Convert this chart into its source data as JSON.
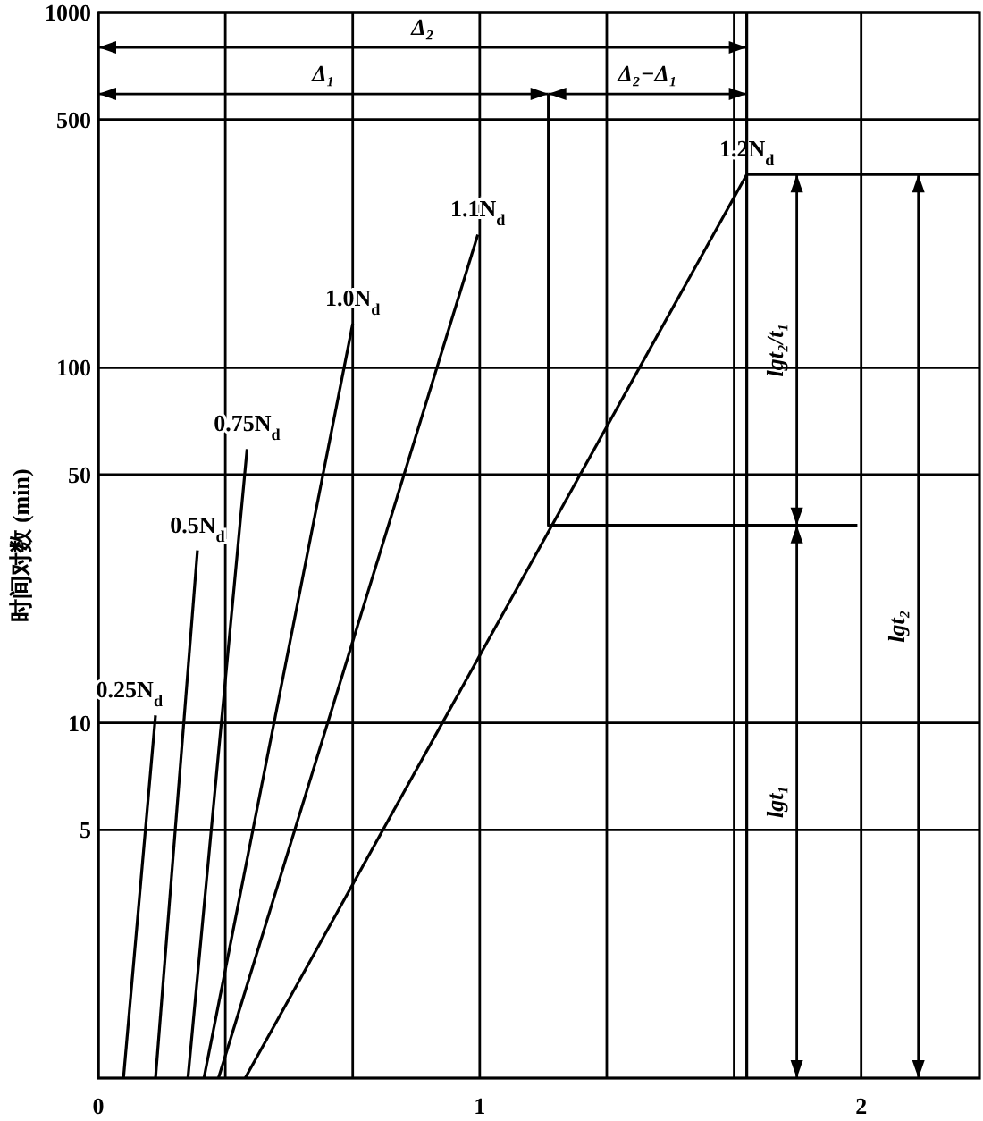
{
  "chart_data": {
    "type": "line",
    "ylabel": "时间对数 (min)",
    "log": "y",
    "grid": true,
    "marker": "none",
    "xlim": [
      0,
      2.31
    ],
    "ylim": [
      1,
      1000
    ],
    "xticks": [
      0,
      {
        "value": 0.333,
        "label": null
      },
      {
        "value": 0.667,
        "label": null
      },
      1,
      {
        "value": 1.333,
        "label": null
      },
      {
        "value": 1.667,
        "label": null
      },
      2
    ],
    "yticks": [
      5,
      10,
      50,
      100,
      500,
      1000
    ],
    "series": [
      {
        "name": "0.25N$_{d}$",
        "color": "#000000",
        "x": [
          0.066,
          0.15
        ],
        "values": [
          1,
          10.5
        ]
      },
      {
        "name": "0.5N$_{d}$",
        "color": "#000000",
        "x": [
          0.15,
          0.26
        ],
        "values": [
          1,
          30.6
        ]
      },
      {
        "name": "0.75N$_{d}$",
        "color": "#000000",
        "x": [
          0.235,
          0.39
        ],
        "values": [
          1,
          59
        ]
      },
      {
        "name": "1.0N$_{d}$",
        "color": "#000000",
        "x": [
          0.277,
          0.667
        ],
        "values": [
          1,
          133
        ]
      },
      {
        "name": "1.1N$_{d}$",
        "color": "#000000",
        "x": [
          0.315,
          0.995
        ],
        "values": [
          1,
          237
        ]
      },
      {
        "name": "1.2N$_{d}$",
        "color": "#000000",
        "x": [
          0.385,
          1.7
        ],
        "values": [
          1,
          350
        ]
      },
      {
        "color": "#000000",
        "x": [
          1.18,
          1.18,
          1.99
        ],
        "values": [
          590,
          36,
          36
        ]
      },
      {
        "color": "#000000",
        "x": [
          1.7,
          1.7
        ],
        "values": [
          1,
          1000
        ]
      },
      {
        "color": "#000000",
        "x": [
          1.7,
          2.31
        ],
        "values": [
          350,
          350
        ]
      }
    ],
    "annotations": [
      "Δ₂",
      "Δ₁",
      "Δ₂−Δ₁",
      "lgt₂/t₁",
      "lgt₁",
      "lgt₂"
    ]
  }
}
